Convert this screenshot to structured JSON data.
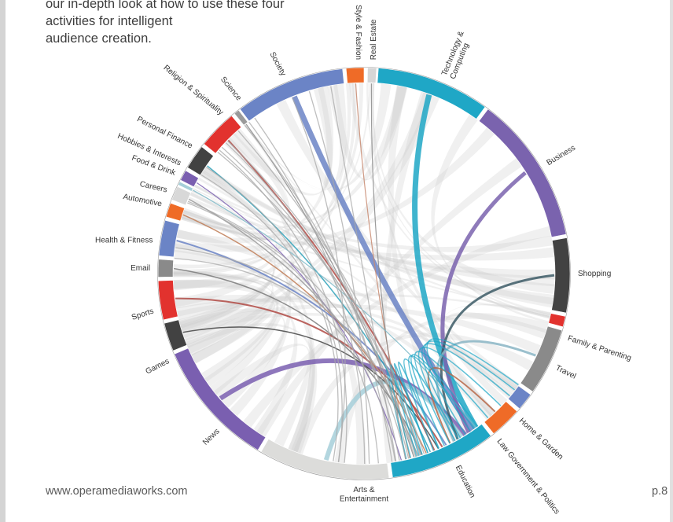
{
  "intro_lines": [
    "our in-depth look at how to use these four",
    "activities for intelligent",
    "audience creation."
  ],
  "footer": {
    "url": "www.operamediaworks.com",
    "page": "p.8"
  },
  "diagram": {
    "segments": [
      {
        "key": "real-estate",
        "label": [
          "Real Estate"
        ],
        "color": "#d6d6d6"
      },
      {
        "key": "technology-computing",
        "label": [
          "Technology &",
          "Computing"
        ],
        "color": "#1fa7c6"
      },
      {
        "key": "business",
        "label": [
          "Business"
        ],
        "color": "#7a63ae"
      },
      {
        "key": "shopping",
        "label": [
          "Shopping"
        ],
        "color": "#424242"
      },
      {
        "key": "family-parenting",
        "label": [
          "Family & Parenting"
        ],
        "color": "#e2322e"
      },
      {
        "key": "travel",
        "label": [
          "Travel"
        ],
        "color": "#8a8a8a"
      },
      {
        "key": "home-garden",
        "label": [
          "Home & Garden"
        ],
        "color": "#6b84c6"
      },
      {
        "key": "law-government-politics",
        "label": [
          "Law Government & Politics"
        ],
        "color": "#ef6b27"
      },
      {
        "key": "education",
        "label": [
          "Education"
        ],
        "color": "#1fa7c6"
      },
      {
        "key": "arts-entertainment",
        "label": [
          "Arts &",
          "Entertainment"
        ],
        "color": "#dcdcda"
      },
      {
        "key": "news",
        "label": [
          "News"
        ],
        "color": "#7a5fb0"
      },
      {
        "key": "games",
        "label": [
          "Games"
        ],
        "color": "#424242"
      },
      {
        "key": "sports",
        "label": [
          "Sports"
        ],
        "color": "#e2322e"
      },
      {
        "key": "email",
        "label": [
          "Email"
        ],
        "color": "#8a8a8a"
      },
      {
        "key": "health-fitness",
        "label": [
          "Health & Fitness"
        ],
        "color": "#6b84c6"
      },
      {
        "key": "automotive",
        "label": [
          "Automotive"
        ],
        "color": "#ef6b27"
      },
      {
        "key": "careers",
        "label": [
          "Careers"
        ],
        "color": "#d8d8d8"
      },
      {
        "key": "food-drink",
        "label": [
          "Food & Drink"
        ],
        "color": "#a6cfd9"
      },
      {
        "key": "hobbies-interests",
        "label": [
          "Hobbies & Interests"
        ],
        "color": "#7a5fb0"
      },
      {
        "key": "personal-finance",
        "label": [
          "Personal Finance"
        ],
        "color": "#424242"
      },
      {
        "key": "religion-spirituality",
        "label": [
          "Religion & Spirituality"
        ],
        "color": "#e2322e"
      },
      {
        "key": "science",
        "label": [
          "Science"
        ],
        "color": "#9a9a9a"
      },
      {
        "key": "society",
        "label": [
          "Society"
        ],
        "color": "#6b84c6"
      },
      {
        "key": "style-fashion",
        "label": [
          "Style & Fashion"
        ],
        "color": "#ef6b27"
      }
    ],
    "ribbon_color": "#c8c8c8",
    "chord_color": "#a8a8a8"
  }
}
